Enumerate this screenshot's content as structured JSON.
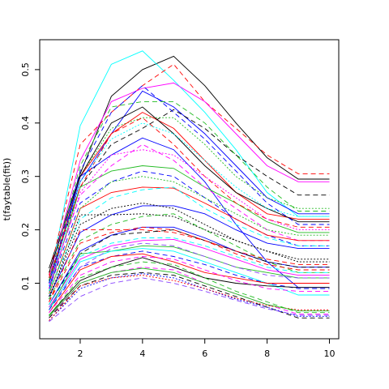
{
  "chart_data": {
    "type": "line",
    "title": "",
    "xlabel": "",
    "ylabel": "t(faytable(fit))",
    "xlim": [
      0.7,
      10.3
    ],
    "ylim": [
      -0.004,
      0.556
    ],
    "x": [
      1,
      2,
      3,
      4,
      5,
      6,
      7,
      8,
      9,
      10
    ],
    "xticks": [
      2,
      4,
      6,
      8,
      10
    ],
    "yticks": [
      0.1,
      0.2,
      0.3,
      0.4,
      0.5
    ],
    "grid": false,
    "legend": "none",
    "series": [
      {
        "color": "#000000",
        "dash": "",
        "values": [
          0.128,
          0.305,
          0.45,
          0.5,
          0.525,
          0.47,
          0.4,
          0.335,
          0.295,
          0.295
        ]
      },
      {
        "color": "#00FFFF",
        "dash": "",
        "values": [
          0.1,
          0.395,
          0.51,
          0.535,
          0.48,
          0.42,
          0.35,
          0.27,
          0.225,
          0.225
        ]
      },
      {
        "color": "#FF0000",
        "dash": "6,4",
        "values": [
          0.115,
          0.36,
          0.42,
          0.47,
          0.51,
          0.44,
          0.39,
          0.34,
          0.305,
          0.305
        ]
      },
      {
        "color": "#FF00FF",
        "dash": "",
        "values": [
          0.11,
          0.33,
          0.44,
          0.465,
          0.475,
          0.44,
          0.38,
          0.32,
          0.29,
          0.29
        ]
      },
      {
        "color": "#0000FF",
        "dash": "",
        "values": [
          0.1,
          0.29,
          0.38,
          0.46,
          0.43,
          0.38,
          0.32,
          0.26,
          0.23,
          0.23
        ]
      },
      {
        "color": "#000000",
        "dash": "6,4",
        "values": [
          0.105,
          0.28,
          0.36,
          0.39,
          0.425,
          0.39,
          0.34,
          0.3,
          0.265,
          0.265
        ]
      },
      {
        "color": "#22BB22",
        "dash": "2,2",
        "values": [
          0.095,
          0.3,
          0.39,
          0.41,
          0.41,
          0.36,
          0.3,
          0.26,
          0.24,
          0.24
        ]
      },
      {
        "color": "#FF0000",
        "dash": "",
        "values": [
          0.1,
          0.3,
          0.38,
          0.42,
          0.39,
          0.33,
          0.27,
          0.23,
          0.22,
          0.22
        ]
      },
      {
        "color": "#0000FF",
        "dash": "",
        "values": [
          0.09,
          0.3,
          0.34,
          0.372,
          0.35,
          0.29,
          0.21,
          0.14,
          0.092,
          0.092
        ]
      },
      {
        "color": "#22BB22",
        "dash": "",
        "values": [
          0.085,
          0.28,
          0.31,
          0.32,
          0.315,
          0.28,
          0.25,
          0.215,
          0.195,
          0.195
        ]
      },
      {
        "color": "#FF00FF",
        "dash": "6,4",
        "values": [
          0.095,
          0.265,
          0.32,
          0.36,
          0.33,
          0.28,
          0.24,
          0.2,
          0.18,
          0.18
        ]
      },
      {
        "color": "#0000FF",
        "dash": "6,4",
        "values": [
          0.09,
          0.25,
          0.29,
          0.31,
          0.3,
          0.26,
          0.22,
          0.19,
          0.17,
          0.17
        ]
      },
      {
        "color": "#FF0000",
        "dash": "",
        "values": [
          0.08,
          0.24,
          0.27,
          0.28,
          0.278,
          0.25,
          0.22,
          0.19,
          0.18,
          0.18
        ]
      },
      {
        "color": "#00FFFF",
        "dash": "6,4",
        "values": [
          0.085,
          0.22,
          0.26,
          0.275,
          0.28,
          0.24,
          0.21,
          0.185,
          0.17,
          0.17
        ]
      },
      {
        "color": "#0000FF",
        "dash": "",
        "values": [
          0.075,
          0.195,
          0.228,
          0.245,
          0.245,
          0.23,
          0.2,
          0.175,
          0.165,
          0.165
        ]
      },
      {
        "color": "#000000",
        "dash": "2,2",
        "values": [
          0.07,
          0.228,
          0.228,
          0.23,
          0.225,
          0.2,
          0.18,
          0.16,
          0.14,
          0.14
        ]
      },
      {
        "color": "#22BB22",
        "dash": "6,4",
        "values": [
          0.07,
          0.18,
          0.21,
          0.225,
          0.23,
          0.2,
          0.17,
          0.14,
          0.12,
          0.12
        ]
      },
      {
        "color": "#FF0000",
        "dash": "6,4",
        "values": [
          0.065,
          0.2,
          0.2,
          0.2,
          0.195,
          0.18,
          0.155,
          0.135,
          0.125,
          0.125
        ]
      },
      {
        "color": "#0000FF",
        "dash": "",
        "values": [
          0.06,
          0.16,
          0.19,
          0.205,
          0.205,
          0.185,
          0.16,
          0.14,
          0.13,
          0.13
        ]
      },
      {
        "color": "#000000",
        "dash": "6,4",
        "values": [
          0.06,
          0.155,
          0.19,
          0.195,
          0.2,
          0.18,
          0.16,
          0.14,
          0.13,
          0.13
        ]
      },
      {
        "color": "#FF00FF",
        "dash": "",
        "values": [
          0.055,
          0.145,
          0.17,
          0.18,
          0.182,
          0.165,
          0.145,
          0.125,
          0.115,
          0.115
        ]
      },
      {
        "color": "#22BB22",
        "dash": "",
        "values": [
          0.05,
          0.155,
          0.16,
          0.17,
          0.168,
          0.15,
          0.13,
          0.12,
          0.11,
          0.11
        ]
      },
      {
        "color": "#00FFFF",
        "dash": "",
        "values": [
          0.05,
          0.14,
          0.16,
          0.165,
          0.16,
          0.14,
          0.12,
          0.1,
          0.078,
          0.078
        ]
      },
      {
        "color": "#0000FF",
        "dash": "6,4",
        "values": [
          0.05,
          0.13,
          0.15,
          0.16,
          0.15,
          0.135,
          0.115,
          0.1,
          0.09,
          0.09
        ]
      },
      {
        "color": "#FF0000",
        "dash": "",
        "values": [
          0.045,
          0.125,
          0.15,
          0.155,
          0.14,
          0.12,
          0.11,
          0.1,
          0.1,
          0.1
        ]
      },
      {
        "color": "#000000",
        "dash": "",
        "values": [
          0.04,
          0.105,
          0.13,
          0.148,
          0.13,
          0.11,
          0.1,
          0.095,
          0.092,
          0.092
        ]
      },
      {
        "color": "#22BB22",
        "dash": "6,4",
        "values": [
          0.04,
          0.11,
          0.13,
          0.14,
          0.135,
          0.11,
          0.085,
          0.065,
          0.045,
          0.045
        ]
      },
      {
        "color": "#FF00FF",
        "dash": "6,4",
        "values": [
          0.035,
          0.1,
          0.12,
          0.13,
          0.125,
          0.1,
          0.08,
          0.06,
          0.042,
          0.042
        ]
      },
      {
        "color": "#000000",
        "dash": "6,4",
        "values": [
          0.035,
          0.095,
          0.115,
          0.12,
          0.115,
          0.095,
          0.075,
          0.055,
          0.035,
          0.035
        ]
      },
      {
        "color": "#0000FF",
        "dash": "2,2",
        "values": [
          0.03,
          0.09,
          0.11,
          0.118,
          0.11,
          0.09,
          0.07,
          0.055,
          0.038,
          0.038
        ]
      },
      {
        "color": "#FF0000",
        "dash": "2,2",
        "values": [
          0.03,
          0.095,
          0.11,
          0.115,
          0.105,
          0.09,
          0.072,
          0.058,
          0.05,
          0.05
        ]
      },
      {
        "color": "#8844FF",
        "dash": "6,4",
        "values": [
          0.028,
          0.075,
          0.1,
          0.11,
          0.1,
          0.085,
          0.068,
          0.052,
          0.04,
          0.04
        ]
      },
      {
        "color": "#000000",
        "dash": "",
        "values": [
          0.12,
          0.3,
          0.4,
          0.43,
          0.38,
          0.32,
          0.27,
          0.24,
          0.215,
          0.215
        ]
      },
      {
        "color": "#FF0000",
        "dash": "6,4",
        "values": [
          0.11,
          0.28,
          0.38,
          0.41,
          0.36,
          0.3,
          0.25,
          0.22,
          0.205,
          0.205
        ]
      },
      {
        "color": "#22BB22",
        "dash": "6,4",
        "values": [
          0.105,
          0.32,
          0.43,
          0.44,
          0.44,
          0.4,
          0.34,
          0.28,
          0.235,
          0.235
        ]
      },
      {
        "color": "#0000FF",
        "dash": "6,4",
        "values": [
          0.1,
          0.31,
          0.42,
          0.47,
          0.42,
          0.37,
          0.31,
          0.25,
          0.21,
          0.21
        ]
      },
      {
        "color": "#00FFFF",
        "dash": "2,2",
        "values": [
          0.095,
          0.29,
          0.37,
          0.4,
          0.38,
          0.33,
          0.28,
          0.24,
          0.225,
          0.225
        ]
      },
      {
        "color": "#FF00FF",
        "dash": "2,2",
        "values": [
          0.09,
          0.27,
          0.34,
          0.35,
          0.34,
          0.3,
          0.26,
          0.22,
          0.2,
          0.2
        ]
      },
      {
        "color": "#22BB22",
        "dash": "2,2",
        "values": [
          0.08,
          0.24,
          0.29,
          0.3,
          0.29,
          0.26,
          0.23,
          0.2,
          0.19,
          0.19
        ]
      },
      {
        "color": "#000000",
        "dash": "2,2",
        "values": [
          0.075,
          0.21,
          0.24,
          0.25,
          0.24,
          0.21,
          0.18,
          0.16,
          0.145,
          0.145
        ]
      },
      {
        "color": "#FF0000",
        "dash": "6,4",
        "values": [
          0.065,
          0.175,
          0.195,
          0.205,
          0.2,
          0.18,
          0.16,
          0.145,
          0.135,
          0.135
        ]
      },
      {
        "color": "#00FFFF",
        "dash": "6,4",
        "values": [
          0.06,
          0.15,
          0.175,
          0.185,
          0.185,
          0.17,
          0.15,
          0.13,
          0.12,
          0.12
        ]
      },
      {
        "color": "#8844FF",
        "dash": "6,4",
        "values": [
          0.055,
          0.13,
          0.165,
          0.175,
          0.17,
          0.15,
          0.13,
          0.115,
          0.11,
          0.11
        ]
      },
      {
        "color": "#FF00FF",
        "dash": "6,4",
        "values": [
          0.045,
          0.115,
          0.14,
          0.15,
          0.145,
          0.125,
          0.105,
          0.09,
          0.085,
          0.085
        ]
      },
      {
        "color": "#22BB22",
        "dash": "",
        "values": [
          0.038,
          0.1,
          0.12,
          0.128,
          0.12,
          0.1,
          0.08,
          0.06,
          0.048,
          0.048
        ]
      }
    ]
  }
}
